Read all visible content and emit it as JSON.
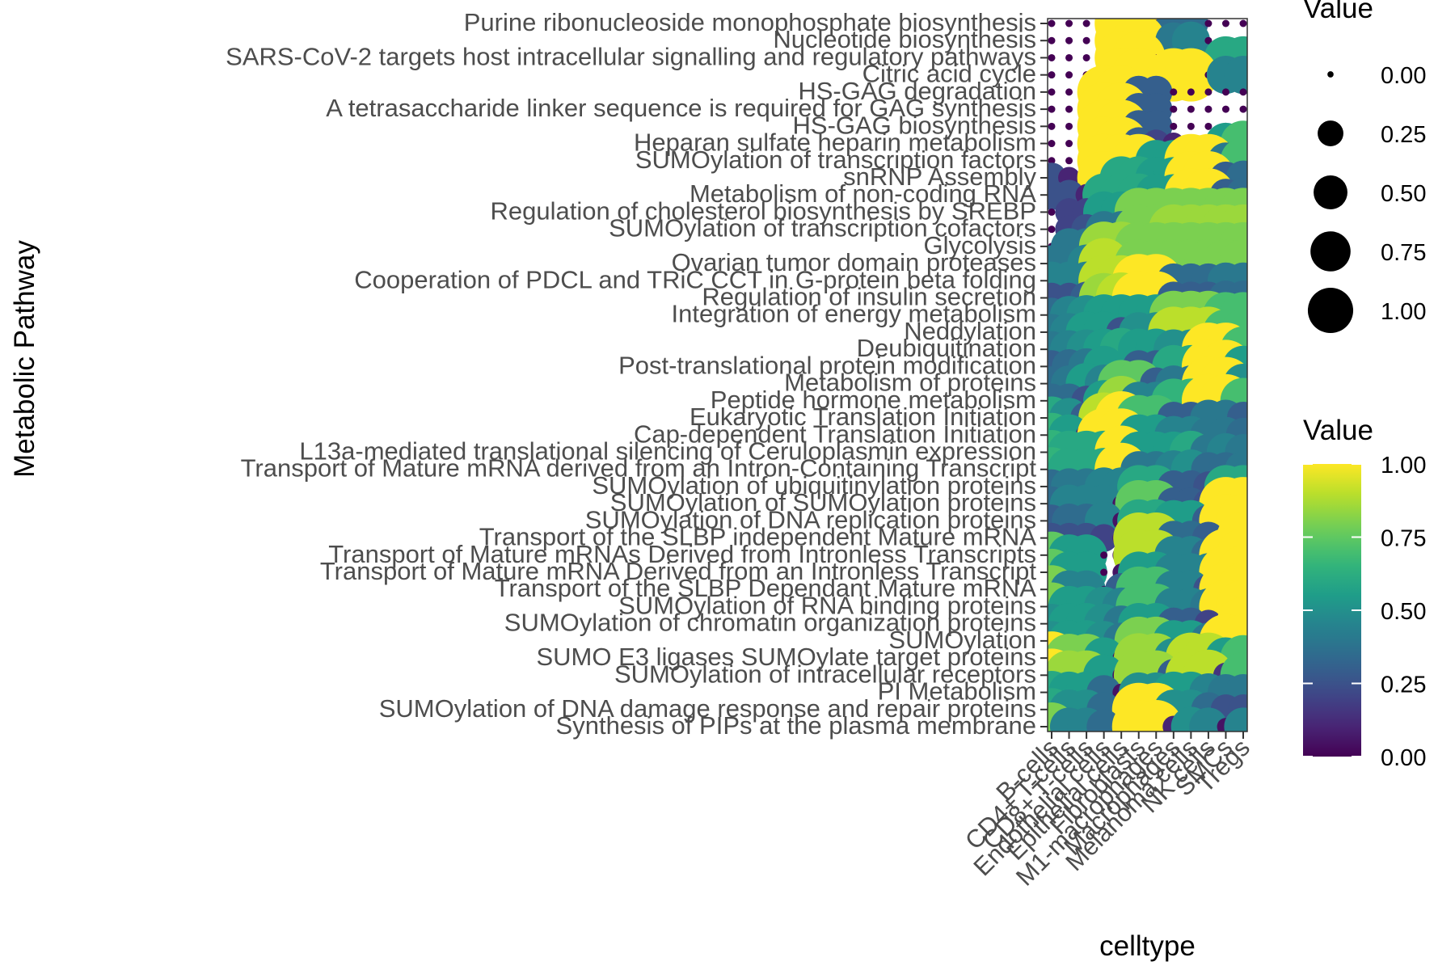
{
  "chart_data": {
    "type": "dotplot",
    "title": "",
    "xlabel": "celltype",
    "ylabel": "Metabolic Pathway",
    "x_categories": [
      "B-cells",
      "CD4+ T-cells",
      "CD8+ T-cells",
      "Endothelial cells",
      "Epithelial cells",
      "Fibroblasts",
      "M1-macrophages",
      "Macrophages",
      "Melanoma cells",
      "NK cells",
      "SMCs",
      "Tregs"
    ],
    "y_categories": [
      "Purine ribonucleoside monophosphate biosynthesis",
      "Nucleotide biosynthesis",
      "SARS-CoV-2 targets host intracellular signalling and regulatory pathways",
      "Citric acid cycle",
      "HS-GAG degradation",
      "A tetrasaccharide linker sequence is required for GAG synthesis",
      "HS-GAG biosynthesis",
      "Heparan sulfate  heparin  metabolism",
      "SUMOylation of transcription factors",
      "snRNP Assembly",
      "Metabolism of non-coding RNA",
      "Regulation of cholesterol biosynthesis by SREBP",
      "SUMOylation of transcription cofactors",
      "Glycolysis",
      "Ovarian tumor domain proteases",
      "Cooperation of PDCL  and TRiC  CCT in G-protein beta folding",
      "Regulation of insulin secretion",
      "Integration of energy metabolism",
      "Neddylation",
      "Deubiquitination",
      "Post-translational protein modification",
      "Metabolism of proteins",
      "Peptide hormone metabolism",
      "Eukaryotic Translation Initiation",
      "Cap-dependent Translation Initiation",
      "L13a-mediated translational silencing of Ceruloplasmin expression",
      "Transport of Mature mRNA derived from an Intron-Containing Transcript",
      "SUMOylation of ubiquitinylation proteins",
      "SUMOylation of SUMOylation proteins",
      "SUMOylation of DNA replication proteins",
      "Transport of the SLBP independent Mature mRNA",
      "Transport of Mature mRNAs Derived from Intronless Transcripts",
      "Transport of Mature mRNA Derived from an Intronless Transcript",
      "Transport of the SLBP Dependant Mature mRNA",
      "SUMOylation of RNA binding proteins",
      "SUMOylation of chromatin organization proteins",
      "SUMOylation",
      "SUMO E3 ligases SUMOylate target proteins",
      "SUMOylation of intracellular receptors",
      "PI Metabolism",
      "SUMOylation of DNA damage response and repair proteins",
      "Synthesis of PIPs at the plasma membrane"
    ],
    "values": [
      [
        0,
        0,
        0,
        0,
        1,
        1,
        0,
        0.35,
        0.35,
        0,
        0,
        0
      ],
      [
        0,
        0,
        0,
        0,
        1,
        1,
        0,
        0.4,
        0.45,
        0,
        0,
        0
      ],
      [
        0,
        0,
        0,
        0,
        1,
        1,
        0,
        0,
        0,
        0,
        0.6,
        0.6
      ],
      [
        0,
        0,
        0,
        0,
        1,
        1,
        0,
        1,
        1,
        0,
        0.45,
        0.45
      ],
      [
        0,
        0,
        0,
        1,
        1,
        0.3,
        0.3,
        0,
        0,
        0,
        0,
        0
      ],
      [
        0,
        0,
        0,
        1,
        1,
        0.3,
        0.3,
        0,
        0,
        0,
        0,
        0
      ],
      [
        0,
        0,
        0,
        1,
        1,
        0.3,
        0.3,
        0,
        0,
        0,
        0,
        0
      ],
      [
        0,
        0,
        0,
        1,
        1,
        0.3,
        0.2,
        0.1,
        0,
        0,
        0.55,
        0.7
      ],
      [
        0,
        0,
        0,
        1,
        1,
        1,
        0.55,
        0.55,
        1,
        1,
        0.4,
        0.7
      ],
      [
        0.25,
        0.1,
        0,
        1,
        0.6,
        0.6,
        0.55,
        0.55,
        1,
        1,
        0.3,
        0.35
      ],
      [
        0.25,
        0.25,
        0.1,
        0.6,
        0.6,
        0.6,
        0.55,
        0.55,
        1,
        1,
        0.3,
        0.35
      ],
      [
        0,
        0.2,
        0.2,
        0.55,
        0.55,
        0.8,
        0.8,
        0.8,
        0.8,
        0.8,
        0.8,
        0.8
      ],
      [
        0,
        0.2,
        0.25,
        0.4,
        0.4,
        0.8,
        0.8,
        0.85,
        0.85,
        0.85,
        0.85,
        0.85
      ],
      [
        0,
        0.4,
        0.4,
        0.85,
        0.85,
        0.8,
        0.8,
        0.8,
        0.8,
        0.8,
        0.8,
        0.8
      ],
      [
        0.4,
        0.4,
        0.45,
        0.9,
        0.05,
        0.8,
        0.8,
        0.8,
        0.8,
        0.8,
        0.8,
        0.8
      ],
      [
        0.45,
        0.45,
        0.45,
        0.9,
        0.9,
        1,
        1,
        0.35,
        0.35,
        0.35,
        0.4,
        0.4
      ],
      [
        0.25,
        0.25,
        0.3,
        0.85,
        0.9,
        1,
        1,
        0.3,
        0.3,
        0.3,
        0.35,
        0.35
      ],
      [
        0.35,
        0.45,
        0.5,
        0.55,
        0.55,
        0.55,
        0.55,
        0.8,
        0.8,
        0.8,
        0.7,
        0.7
      ],
      [
        0.4,
        0.45,
        0.55,
        0.55,
        0.25,
        0.5,
        0.5,
        0.9,
        0.9,
        0.9,
        0.7,
        0.7
      ],
      [
        0.4,
        0.45,
        0.5,
        0.55,
        0.6,
        0.55,
        0.55,
        0.5,
        0.5,
        1,
        1,
        0.7
      ],
      [
        0.3,
        0.35,
        0.4,
        0.55,
        0,
        0.3,
        0.3,
        0.6,
        0.6,
        1,
        1,
        0.55
      ],
      [
        0.35,
        0.4,
        0.55,
        0.45,
        0.75,
        0.75,
        0.3,
        0.4,
        0.4,
        1,
        1,
        0.5
      ],
      [
        0.35,
        0.35,
        0.25,
        0.55,
        0.85,
        0.45,
        0.45,
        0.65,
        0.65,
        1,
        1,
        0.7
      ],
      [
        0.6,
        0.5,
        0.3,
        0.9,
        1,
        0.7,
        0.7,
        0.3,
        0.3,
        0.4,
        0.4,
        0.3
      ],
      [
        0.65,
        0.55,
        0.1,
        1,
        1,
        0.55,
        0.55,
        0.45,
        0.45,
        0.4,
        0.4,
        0.35
      ],
      [
        0.65,
        0.6,
        0.6,
        0.6,
        1,
        0.55,
        0.55,
        0.55,
        0.6,
        0.4,
        0.45,
        0.4
      ],
      [
        0.65,
        0.6,
        0.6,
        0.6,
        1,
        0.4,
        0.4,
        0.45,
        0.5,
        0.35,
        0.35,
        0.4
      ],
      [
        0.35,
        0.4,
        0.4,
        0.45,
        0.45,
        0.6,
        0.6,
        0.3,
        0.3,
        0.25,
        0.6,
        0.6
      ],
      [
        0.35,
        0.45,
        0.45,
        0.45,
        0.05,
        0.75,
        0.75,
        0.3,
        0.3,
        0.25,
        1,
        1
      ],
      [
        0.3,
        0.35,
        0.35,
        0.45,
        0.05,
        0.6,
        0.6,
        0.55,
        0.55,
        0.3,
        1,
        1
      ],
      [
        0.25,
        0.25,
        0.25,
        0.2,
        0.05,
        0.9,
        0.9,
        0.35,
        0.35,
        0.3,
        0.1,
        1
      ],
      [
        0.75,
        0.55,
        0.55,
        0,
        0.05,
        0.9,
        0.9,
        0.45,
        0.45,
        0.35,
        1,
        1
      ],
      [
        0.75,
        0.55,
        0.55,
        0,
        0.05,
        0.55,
        0.55,
        0.45,
        0.45,
        0.45,
        1,
        1
      ],
      [
        0.8,
        0.45,
        0.45,
        0,
        0.3,
        0.7,
        0.7,
        0.45,
        0.45,
        0.25,
        1,
        1
      ],
      [
        0.8,
        0.55,
        0.55,
        0.5,
        0.45,
        0.7,
        0.7,
        0.45,
        0.45,
        0.4,
        1,
        1
      ],
      [
        0.5,
        0.55,
        0.55,
        0.5,
        0.4,
        0.55,
        0.55,
        0.3,
        0.3,
        0.2,
        0,
        1
      ],
      [
        0.5,
        0.55,
        0.55,
        0.5,
        0.4,
        0.8,
        0.8,
        0.55,
        0.55,
        0.4,
        1,
        1
      ],
      [
        1,
        0.8,
        0.8,
        0.55,
        0.05,
        0.85,
        0.85,
        0.5,
        0.9,
        0.9,
        0.55,
        0.7
      ],
      [
        1,
        0.85,
        0.85,
        0.55,
        0.05,
        0.85,
        0.85,
        0.3,
        0.9,
        0.9,
        0.15,
        0.7
      ],
      [
        0.6,
        0.55,
        0.55,
        0.35,
        0.05,
        0.5,
        0.5,
        0.55,
        0.55,
        0.45,
        0.4,
        0.4
      ],
      [
        0.6,
        0.5,
        0.5,
        0.35,
        0.05,
        1,
        1,
        0.5,
        0.5,
        0.35,
        0.25,
        0.25
      ],
      [
        0.8,
        0.45,
        0.45,
        0.35,
        0.05,
        1,
        1,
        0.1,
        0.5,
        0.45,
        0.05,
        0.45
      ]
    ],
    "size_legend": {
      "title": "Value",
      "values": [
        0.0,
        0.25,
        0.5,
        0.75,
        1.0
      ],
      "labels": [
        "0.00",
        "0.25",
        "0.50",
        "0.75",
        "1.00"
      ]
    },
    "color_legend": {
      "title": "Value",
      "range": [
        0,
        1
      ],
      "ticks": [
        0.0,
        0.25,
        0.5,
        0.75,
        1.0
      ],
      "labels": [
        "0.00",
        "0.25",
        "0.50",
        "0.75",
        "1.00"
      ],
      "colormap": "viridis"
    },
    "grid": false,
    "legend_position": "right"
  }
}
